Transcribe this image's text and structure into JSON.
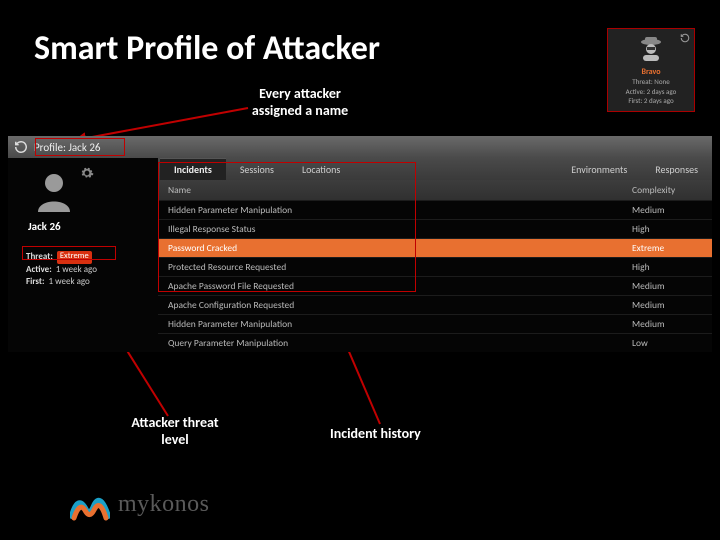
{
  "slide": {
    "title": "Smart Profile of Attacker",
    "callouts": {
      "name": "Every attacker assigned a name",
      "threat": "Attacker threat level",
      "history": "Incident history"
    },
    "arrow_color": "#c00000",
    "highlight_border": "#c00000"
  },
  "thumb_card": {
    "name": "Bravo",
    "line1": "Threat: None",
    "line2": "Active: 2 days ago",
    "line3": "First: 2 days ago",
    "border_color": "#a00000",
    "name_color": "#e87030"
  },
  "screenshot": {
    "topbar": {
      "label": "Profile:",
      "name": "Jack 26"
    },
    "attacker": {
      "name": "Jack 26",
      "threat_label": "Threat:",
      "threat_value": "Extreme",
      "active_label": "Active:",
      "active_value": "1 week ago",
      "first_label": "First:",
      "first_value": "1 week ago",
      "threat_bg": "#d83010"
    },
    "tabs": [
      "Incidents",
      "Sessions",
      "Locations",
      "Environments",
      "Responses"
    ],
    "active_tab": 0,
    "columns": [
      "Name",
      "Complexity"
    ],
    "rows": [
      {
        "name": "Hidden Parameter Manipulation",
        "complexity": "Medium",
        "hl": false
      },
      {
        "name": "Illegal Response Status",
        "complexity": "High",
        "hl": false
      },
      {
        "name": "Password Cracked",
        "complexity": "Extreme",
        "hl": true
      },
      {
        "name": "Protected Resource Requested",
        "complexity": "High",
        "hl": false
      },
      {
        "name": "Apache Password File Requested",
        "complexity": "Medium",
        "hl": false
      },
      {
        "name": "Apache Configuration Requested",
        "complexity": "Medium",
        "hl": false
      },
      {
        "name": "Hidden Parameter Manipulation",
        "complexity": "Medium",
        "hl": false
      },
      {
        "name": "Query Parameter Manipulation",
        "complexity": "Low",
        "hl": false
      }
    ],
    "row_highlight_bg": "#e87030",
    "bg": "#050505",
    "topbar_bg_from": "#6a6a6a",
    "topbar_bg_to": "#4a4a4a"
  },
  "logo": {
    "text": "mykonos"
  }
}
